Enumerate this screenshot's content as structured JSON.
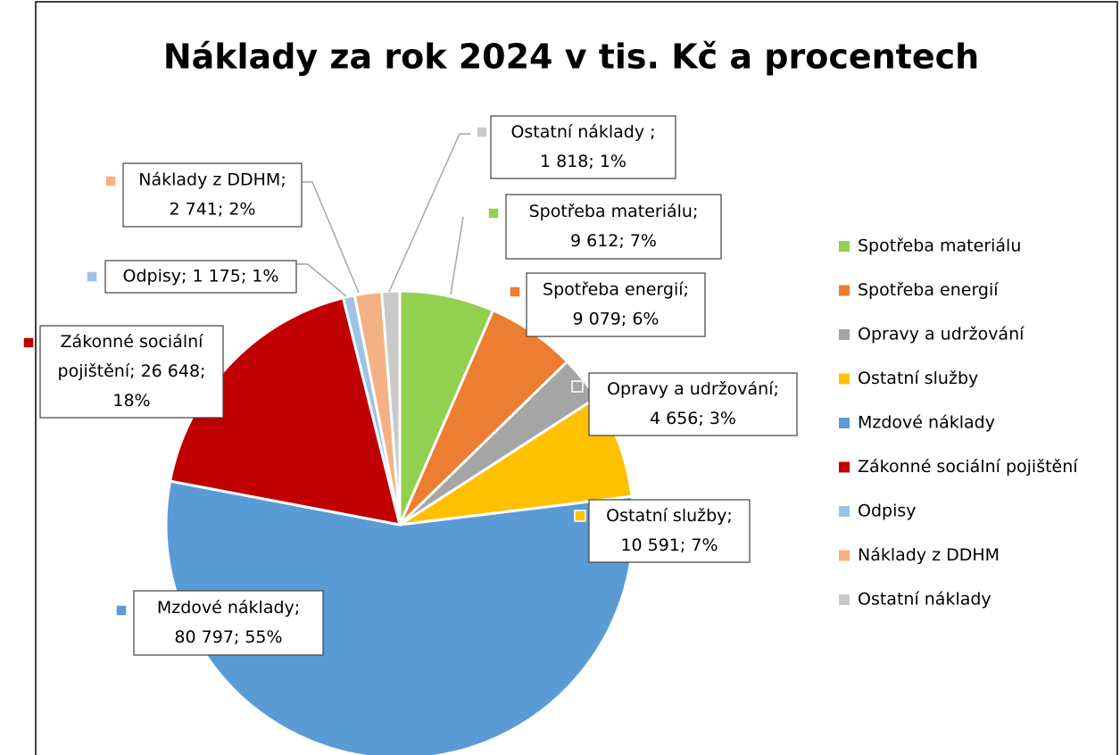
{
  "chart_data": {
    "type": "pie",
    "title": "Náklady za rok 2024 v tis. Kč a procentech",
    "categories": [
      "Spotřeba materiálu",
      "Spotřeba energií",
      "Opravy a udržování",
      "Ostatní služby",
      "Mzdové náklady",
      "Zákonné sociální pojištění",
      "Odpisy",
      "Náklady z DDHM",
      "Ostatní náklady"
    ],
    "values": [
      9612,
      9079,
      4656,
      10591,
      80797,
      26648,
      1175,
      2741,
      1818
    ],
    "colors": [
      "#92d050",
      "#ed7d31",
      "#a5a5a5",
      "#ffc000",
      "#5b9bd5",
      "#c00000",
      "#9dc3e6",
      "#f4b183",
      "#c9c9c9"
    ],
    "data_labels": [
      [
        "Spotřeba materiálu;",
        "9 612; 7%"
      ],
      [
        "Spotřeba energií;",
        "9 079; 6%"
      ],
      [
        "Opravy a udržování;",
        "4 656; 3%"
      ],
      [
        "Ostatní služby;",
        "10 591; 7%"
      ],
      [
        "Mzdové náklady;",
        "80 797; 55%"
      ],
      [
        "Zákonné sociální",
        "pojištění; 26 648;",
        "18%"
      ],
      [
        "Odpisy; 1 175; 1%"
      ],
      [
        "Náklady z DDHM;",
        "2 741; 2%"
      ],
      [
        "Ostatní náklady ;",
        "1 818; 1%"
      ]
    ],
    "legend": "right"
  }
}
